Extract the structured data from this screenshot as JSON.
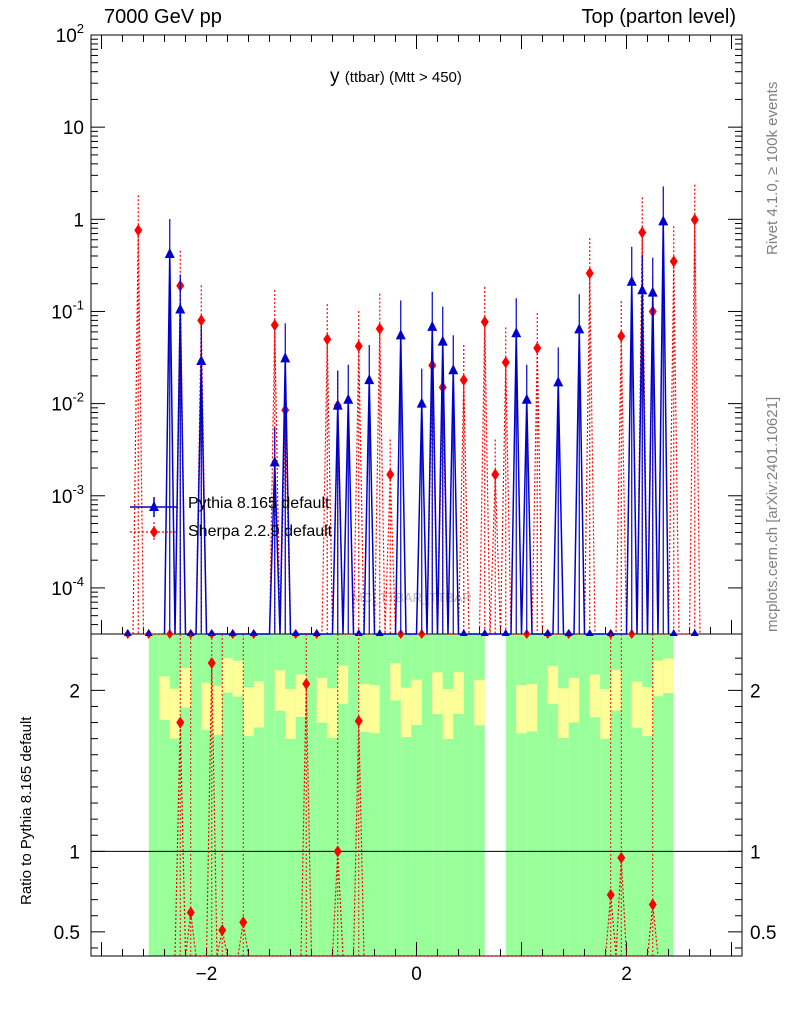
{
  "header": {
    "left": "7000 GeV pp",
    "right": "Top (parton level)"
  },
  "title": {
    "main": "y",
    "sub": "(ttbar) (Mtt > 450)"
  },
  "side_labels": {
    "rivet": "Rivet 4.1.0, ≥ 100k events",
    "mcplots": "mcplots.cern.ch [arXiv:2401.10621]"
  },
  "watermark": "MC_TTBAR_TTBAR",
  "ratio_ylabel": "Ratio to Pythia 8.165 default",
  "legend": [
    {
      "label": "Pythia 8.165 default",
      "color": "#0000cc",
      "marker": "triangle"
    },
    {
      "label": "Sherpa 2.2.9 default",
      "color": "#ff0000",
      "marker": "diamond"
    }
  ],
  "colors": {
    "pythia": "#0000cc",
    "sherpa": "#ff0000",
    "band_inner": "#99ff99",
    "band_outer": "#ffff99"
  },
  "chart_data": {
    "type": "line",
    "xlabel": "y",
    "xlim": [
      -3.1,
      3.1
    ],
    "main_ylim_log10": [
      -4.5,
      2
    ],
    "main_y_ticks": [
      "10^{-4}",
      "10^{-3}",
      "10^{-2}",
      "10^{-1}",
      "1",
      "10",
      "10^{2}"
    ],
    "x_ticks": [
      -2,
      0,
      2
    ],
    "ratio_ylim": [
      0.35,
      2.35
    ],
    "ratio_y_ticks": [
      0.5,
      1,
      2
    ],
    "series": [
      {
        "name": "Pythia 8.165 default",
        "points": [
          {
            "x": -2.35,
            "y": 0.42
          },
          {
            "x": -2.25,
            "y": 0.105
          },
          {
            "x": -2.05,
            "y": 0.029
          },
          {
            "x": -1.35,
            "y": 0.0023
          },
          {
            "x": -1.25,
            "y": 0.031
          },
          {
            "x": -0.75,
            "y": 0.0095
          },
          {
            "x": -0.65,
            "y": 0.011
          },
          {
            "x": -0.45,
            "y": 0.018
          },
          {
            "x": -0.15,
            "y": 0.055
          },
          {
            "x": 0.05,
            "y": 0.01
          },
          {
            "x": 0.15,
            "y": 0.068
          },
          {
            "x": 0.25,
            "y": 0.047
          },
          {
            "x": 0.35,
            "y": 0.023
          },
          {
            "x": 0.95,
            "y": 0.058
          },
          {
            "x": 1.05,
            "y": 0.011
          },
          {
            "x": 1.35,
            "y": 0.017
          },
          {
            "x": 1.55,
            "y": 0.064
          },
          {
            "x": 2.05,
            "y": 0.21
          },
          {
            "x": 2.15,
            "y": 0.17
          },
          {
            "x": 2.25,
            "y": 0.16
          },
          {
            "x": 2.35,
            "y": 0.95
          }
        ]
      },
      {
        "name": "Sherpa 2.2.9 default",
        "points": [
          {
            "x": -2.65,
            "y": 0.76
          },
          {
            "x": -2.25,
            "y": 0.19
          },
          {
            "x": -2.05,
            "y": 0.08
          },
          {
            "x": -1.35,
            "y": 0.071
          },
          {
            "x": -1.25,
            "y": 0.0085
          },
          {
            "x": -0.85,
            "y": 0.05
          },
          {
            "x": -0.75,
            "y": 0.0095
          },
          {
            "x": -0.55,
            "y": 0.042
          },
          {
            "x": -0.35,
            "y": 0.065
          },
          {
            "x": -0.25,
            "y": 0.0017
          },
          {
            "x": 0.15,
            "y": 0.026
          },
          {
            "x": 0.25,
            "y": 0.015
          },
          {
            "x": 0.45,
            "y": 0.018
          },
          {
            "x": 0.65,
            "y": 0.077
          },
          {
            "x": 0.75,
            "y": 0.0017
          },
          {
            "x": 0.85,
            "y": 0.028
          },
          {
            "x": 1.15,
            "y": 0.04
          },
          {
            "x": 1.65,
            "y": 0.26
          },
          {
            "x": 1.95,
            "y": 0.054
          },
          {
            "x": 2.15,
            "y": 0.72
          },
          {
            "x": 2.25,
            "y": 0.1
          },
          {
            "x": 2.45,
            "y": 0.35
          },
          {
            "x": 2.65,
            "y": 0.99
          }
        ]
      }
    ],
    "ratio_points": [
      {
        "x": -2.25,
        "y": 1.8
      },
      {
        "x": -2.15,
        "y": 0.62
      },
      {
        "x": -1.95,
        "y": 2.17
      },
      {
        "x": -1.85,
        "y": 0.51
      },
      {
        "x": -1.65,
        "y": 0.56
      },
      {
        "x": -1.05,
        "y": 2.04
      },
      {
        "x": -0.75,
        "y": 1.0
      },
      {
        "x": -0.55,
        "y": 1.81
      },
      {
        "x": 1.85,
        "y": 0.73
      },
      {
        "x": 1.95,
        "y": 0.96
      },
      {
        "x": 2.25,
        "y": 0.67
      }
    ]
  }
}
